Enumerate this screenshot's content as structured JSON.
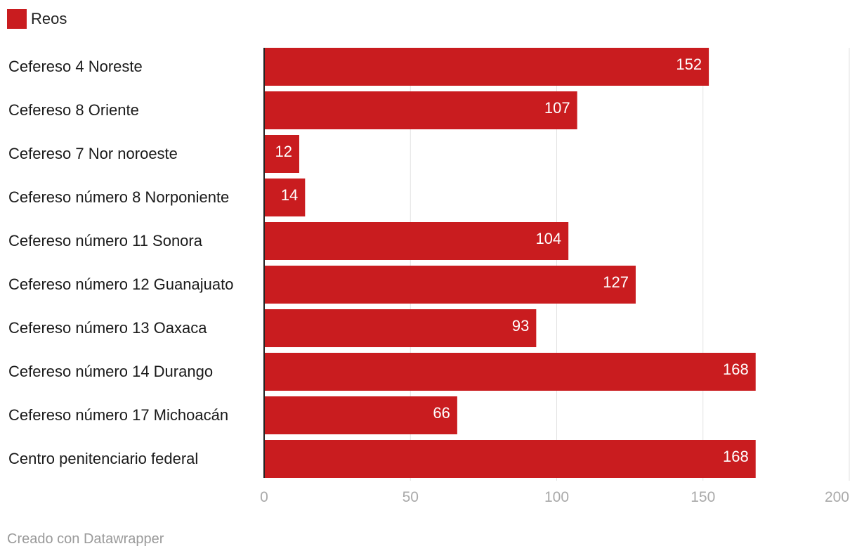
{
  "legend": {
    "label": "Reos",
    "color": "#c91c1f"
  },
  "footer": {
    "credit": "Creado con Datawrapper"
  },
  "chart_data": {
    "type": "bar",
    "orientation": "horizontal",
    "categories": [
      "Cefereso 4 Noreste",
      "Cefereso 8 Oriente",
      "Cefereso 7 Nor noroeste",
      "Cefereso número 8 Norponiente",
      "Cefereso número 11 Sonora",
      "Cefereso número 12 Guanajuato",
      "Cefereso número 13 Oaxaca",
      "Cefereso número 14 Durango",
      "Cefereso número 17 Michoacán",
      "Centro penitenciario federal"
    ],
    "series": [
      {
        "name": "Reos",
        "values": [
          152,
          107,
          12,
          14,
          104,
          127,
          93,
          168,
          66,
          168
        ]
      }
    ],
    "xlim": [
      0,
      200
    ],
    "xticks": [
      0,
      50,
      100,
      150,
      200
    ],
    "grid": true,
    "legend_position": "top-left",
    "colors": {
      "bar": "#c91c1f",
      "value_label": "#ffffff",
      "grid": "#e2e2e2",
      "tick": "#aaaaaa",
      "axis": "#222222",
      "category": "#1a1a1a"
    }
  }
}
